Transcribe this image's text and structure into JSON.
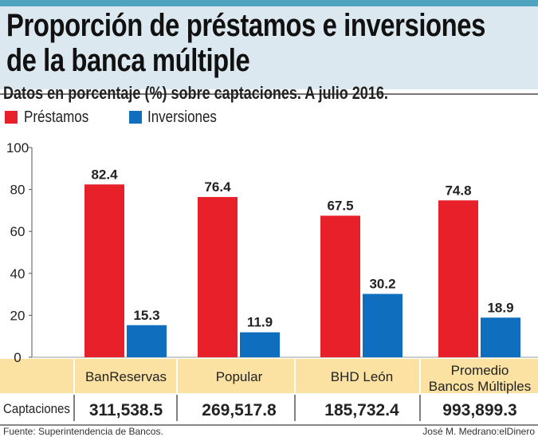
{
  "title_lines": [
    "Proporción de préstamos e inversiones",
    "de la banca múltiple"
  ],
  "chart_data": {
    "type": "bar",
    "title": "Proporción de préstamos e inversiones de la banca múltiple",
    "subtitle": "Datos en porcentaje (%) sobre captaciones. A julio 2016.",
    "categories": [
      "BanReservas",
      "Popular",
      "BHD León",
      "Promedio Bancos Múltiples"
    ],
    "category_lines": [
      [
        "BanReservas"
      ],
      [
        "Popular"
      ],
      [
        "BHD León"
      ],
      [
        "Promedio",
        "Bancos Múltiples"
      ]
    ],
    "series": [
      {
        "name": "Préstamos",
        "color": "#e8202a",
        "values": [
          82.4,
          76.4,
          67.5,
          74.8
        ],
        "labels": [
          "82.4",
          "76.4",
          "67.5",
          "74.8"
        ]
      },
      {
        "name": "Inversiones",
        "color": "#0f6fbe",
        "values": [
          15.3,
          11.9,
          30.2,
          18.9
        ],
        "labels": [
          "15.3",
          "11.9",
          "30.2",
          "18.9"
        ]
      }
    ],
    "ylim": [
      0,
      100
    ],
    "yticks": [
      "0",
      "20",
      "40",
      "60",
      "80",
      "100"
    ],
    "grid": false,
    "legend": "top-left"
  },
  "table": {
    "row_label": "Captaciones",
    "values": [
      "311,538.5",
      "269,517.8",
      "185,732.4",
      "993,899.3"
    ],
    "band_color": "#fbe2a3"
  },
  "footer": {
    "source": "Fuente: Superintendencia de Bancos.",
    "credit": "José M. Medrano:elDinero"
  }
}
